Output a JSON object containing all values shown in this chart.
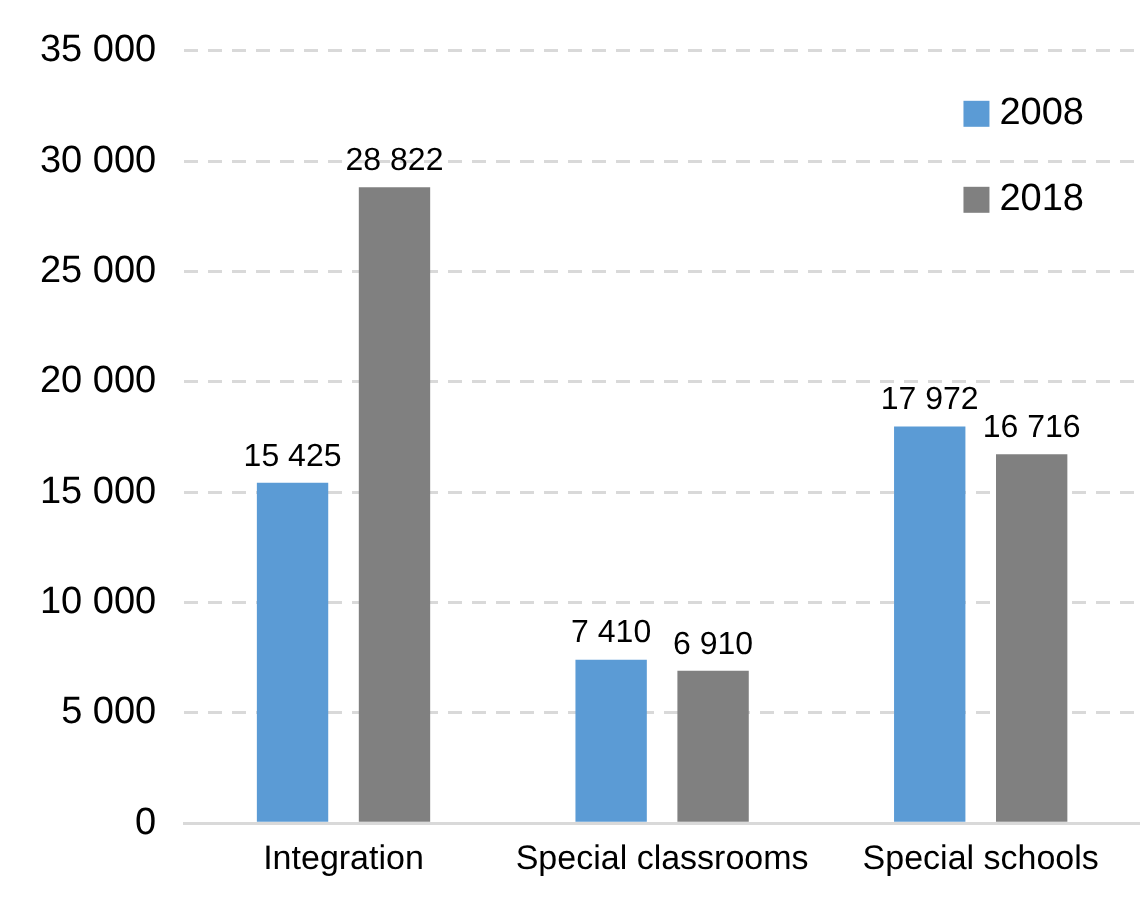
{
  "chart_data": {
    "type": "bar",
    "categories": [
      "Integration",
      "Special classrooms",
      "Special schools"
    ],
    "series": [
      {
        "name": "2008",
        "color": "#5b9bd5",
        "values": [
          15425,
          7410,
          17972
        ],
        "value_labels": [
          "15 425",
          "7 410",
          "17 972"
        ]
      },
      {
        "name": "2018",
        "color": "#808080",
        "values": [
          28822,
          6910,
          16716
        ],
        "value_labels": [
          "28 822",
          "6 910",
          "16 716"
        ]
      }
    ],
    "ylim": [
      0,
      35000
    ],
    "yticks": [
      0,
      {
        "value": 5000,
        "label": "5 000"
      },
      {
        "value": 10000,
        "label": "10 000"
      },
      {
        "value": 15000,
        "label": "15 000"
      },
      {
        "value": 20000,
        "label": "20 000"
      },
      {
        "value": 25000,
        "label": "25 000"
      },
      {
        "value": 30000,
        "label": "30 000"
      },
      {
        "value": 35000,
        "label": "35 000"
      }
    ],
    "grid": "y",
    "legend": "top right"
  }
}
